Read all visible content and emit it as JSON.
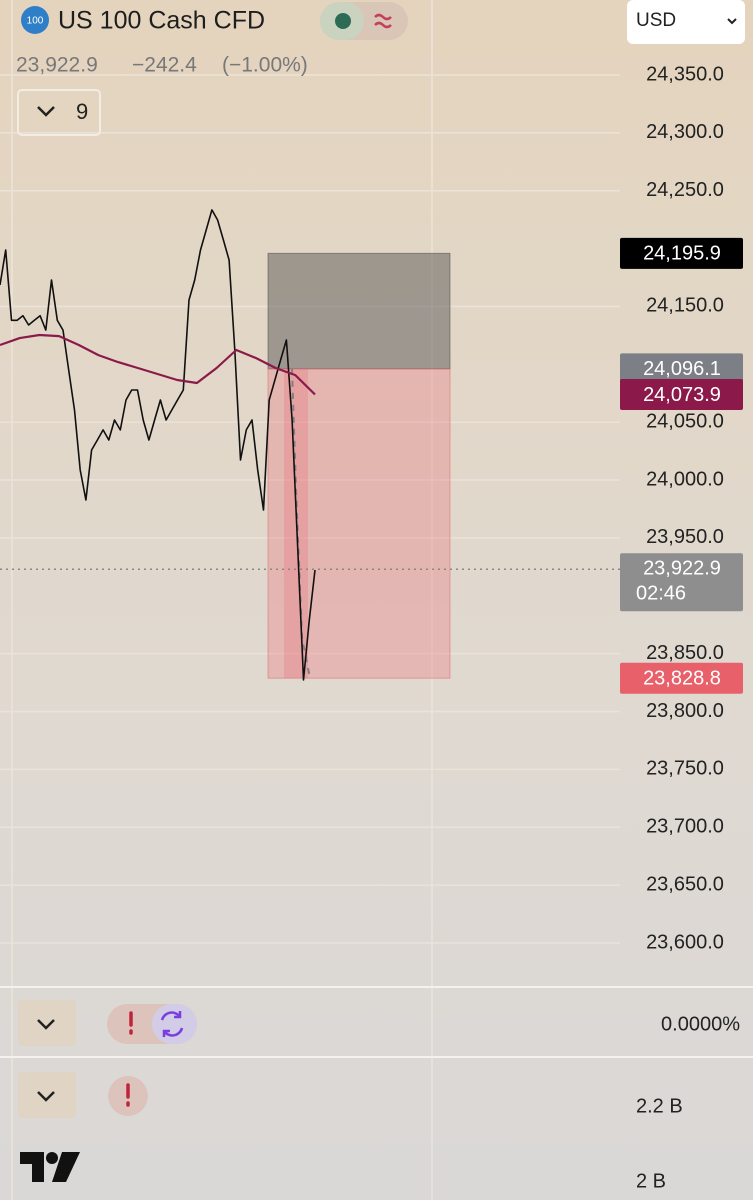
{
  "header": {
    "symbol_badge": "100",
    "title": "US 100 Cash CFD",
    "price": "23,922.9",
    "change": "−242.4",
    "change_pct": "(−1.00%)",
    "indicators_count": "9"
  },
  "currency": "USD",
  "chart_data": {
    "type": "line",
    "ylim": [
      23563.7,
      24414.8
    ],
    "yticks": [
      {
        "value": 24350,
        "label": "24,350.0"
      },
      {
        "value": 24300,
        "label": "24,300.0"
      },
      {
        "value": 24250,
        "label": "24,250.0"
      },
      {
        "value": 24150,
        "label": "24,150.0"
      },
      {
        "value": 24050,
        "label": "24,050.0"
      },
      {
        "value": 24000,
        "label": "24,000.0"
      },
      {
        "value": 23950,
        "label": "23,950.0"
      },
      {
        "value": 23850,
        "label": "23,850.0"
      },
      {
        "value": 23800,
        "label": "23,800.0"
      },
      {
        "value": 23750,
        "label": "23,750.0"
      },
      {
        "value": 23700,
        "label": "23,700.0"
      },
      {
        "value": 23650,
        "label": "23,650.0"
      },
      {
        "value": 23600,
        "label": "23,600.0"
      }
    ],
    "grid": true,
    "series": [
      {
        "color": "#111111",
        "values": [
          24168.5,
          24198.8,
          24138.0,
          24138.0,
          24142.0,
          24134.0,
          24138.0,
          24142.0,
          24129.6,
          24172.9,
          24138.0,
          24129.6,
          24095.0,
          24060.5,
          24008.7,
          23982.8,
          24026.0,
          24034.6,
          24043.3,
          24034.6,
          24051.9,
          24043.3,
          24069.2,
          24077.8,
          24077.8,
          24051.9,
          24034.6,
          24051.9,
          24069.2,
          24051.9,
          24060.5,
          24069.2,
          24077.8,
          24155.6,
          24172.9,
          24198.8,
          24216.1,
          24233.4,
          24224.7,
          24207.4,
          24190.1,
          24112.4,
          24017.3,
          24043.3,
          24051.9,
          24008.7,
          23974.1,
          24069.2,
          24086.5,
          24103.7,
          24121.0,
          24051.9,
          23939.6,
          23827.3,
          23879.1,
          23922.3
        ]
      },
      {
        "color": "#8b1a4a",
        "values": [
          24116.7,
          24122.7,
          24125.3,
          24124.4,
          24116.7,
          24108.0,
          24101.9,
          24096.8,
          24091.6,
          24086.5,
          24083.9,
          24096.8,
          24112.4,
          24105.5,
          24096.8,
          24090.7,
          24073.9
        ]
      }
    ],
    "price_labels": [
      {
        "value": 24195.9,
        "label": "24,195.9",
        "color": "#000000"
      },
      {
        "value": 24096.1,
        "label": "24,096.1",
        "color": "#7d7f86"
      },
      {
        "value": 24073.9,
        "label": "24,073.9",
        "color": "#8b1a4a"
      },
      {
        "value": 23922.9,
        "label": "23,922.9",
        "timer": "02:46",
        "color": "#8e8e8e"
      },
      {
        "value": 23828.8,
        "label": "23,828.8",
        "color": "#e8606a"
      }
    ]
  },
  "panes": [
    {
      "value_label": "0.0000%"
    },
    {
      "value_label": "2.2 B",
      "second_label": "2 B"
    }
  ]
}
